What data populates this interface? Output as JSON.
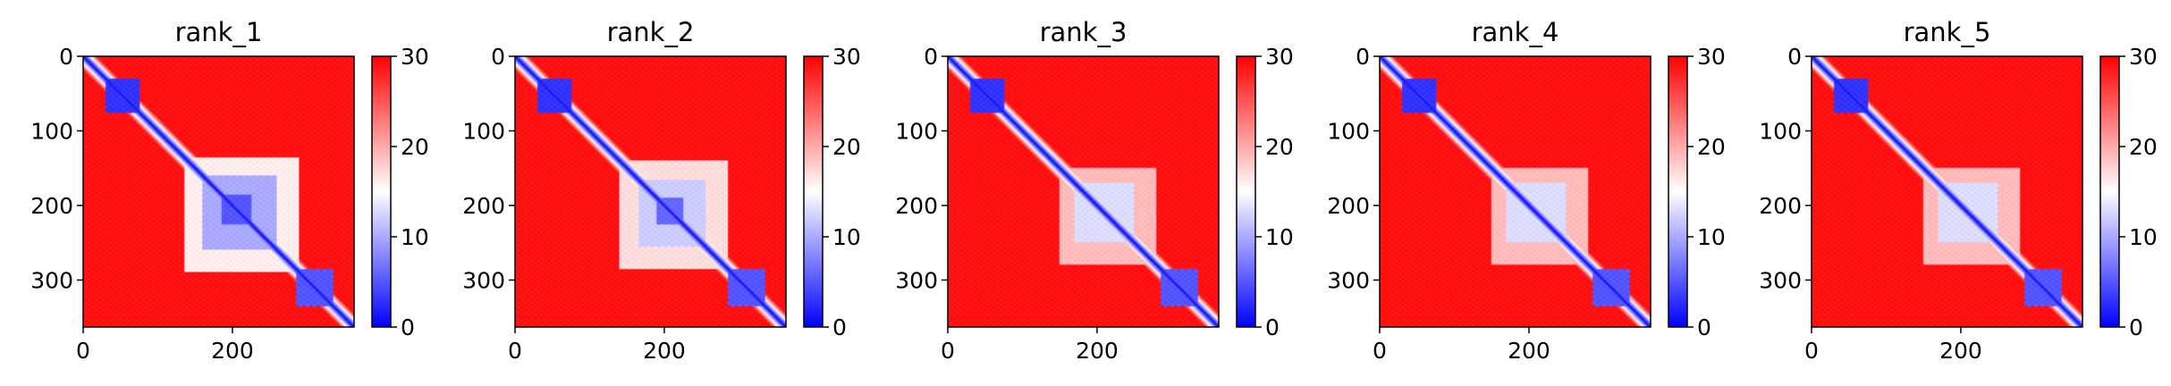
{
  "figure": {
    "colormap": [
      "#0000ff",
      "#ffffff",
      "#ff0000"
    ]
  },
  "chart_data": [
    {
      "type": "heatmap",
      "title": "rank_1",
      "xlabel": "",
      "ylabel": "",
      "xlim": [
        0,
        363
      ],
      "ylim": [
        363,
        0
      ],
      "x_ticks": [
        0,
        200
      ],
      "y_ticks": [
        0,
        100,
        200,
        300
      ],
      "colorbar": {
        "min": 0,
        "max": 30,
        "ticks": [
          0,
          10,
          20,
          30
        ]
      },
      "diagonal_value": 0,
      "background_value": 29,
      "blocks": [
        [
          30,
          75,
          3
        ],
        [
          135,
          290,
          16
        ],
        [
          160,
          260,
          10
        ],
        [
          185,
          225,
          5
        ],
        [
          285,
          335,
          5
        ]
      ]
    },
    {
      "type": "heatmap",
      "title": "rank_2",
      "xlabel": "",
      "ylabel": "",
      "xlim": [
        0,
        363
      ],
      "ylim": [
        363,
        0
      ],
      "x_ticks": [
        0,
        200
      ],
      "y_ticks": [
        0,
        100,
        200,
        300
      ],
      "colorbar": {
        "min": 0,
        "max": 30,
        "ticks": [
          0,
          10,
          20,
          30
        ]
      },
      "diagonal_value": 0,
      "background_value": 29,
      "blocks": [
        [
          30,
          75,
          3
        ],
        [
          140,
          285,
          17
        ],
        [
          165,
          255,
          12
        ],
        [
          190,
          225,
          6
        ],
        [
          285,
          335,
          5
        ]
      ]
    },
    {
      "type": "heatmap",
      "title": "rank_3",
      "xlabel": "",
      "ylabel": "",
      "xlim": [
        0,
        363
      ],
      "ylim": [
        363,
        0
      ],
      "x_ticks": [
        0,
        200
      ],
      "y_ticks": [
        0,
        100,
        200,
        300
      ],
      "colorbar": {
        "min": 0,
        "max": 30,
        "ticks": [
          0,
          10,
          20,
          30
        ]
      },
      "diagonal_value": 0,
      "background_value": 29,
      "blocks": [
        [
          30,
          75,
          3
        ],
        [
          150,
          280,
          19
        ],
        [
          170,
          250,
          13
        ],
        [
          285,
          335,
          5
        ]
      ]
    },
    {
      "type": "heatmap",
      "title": "rank_4",
      "xlabel": "",
      "ylabel": "",
      "xlim": [
        0,
        363
      ],
      "ylim": [
        363,
        0
      ],
      "x_ticks": [
        0,
        200
      ],
      "y_ticks": [
        0,
        100,
        200,
        300
      ],
      "colorbar": {
        "min": 0,
        "max": 30,
        "ticks": [
          0,
          10,
          20,
          30
        ]
      },
      "diagonal_value": 0,
      "background_value": 29,
      "blocks": [
        [
          30,
          75,
          3
        ],
        [
          150,
          280,
          19
        ],
        [
          170,
          250,
          13
        ],
        [
          285,
          335,
          5
        ]
      ]
    },
    {
      "type": "heatmap",
      "title": "rank_5",
      "xlabel": "",
      "ylabel": "",
      "xlim": [
        0,
        363
      ],
      "ylim": [
        363,
        0
      ],
      "x_ticks": [
        0,
        200
      ],
      "y_ticks": [
        0,
        100,
        200,
        300
      ],
      "colorbar": {
        "min": 0,
        "max": 30,
        "ticks": [
          0,
          10,
          20,
          30
        ]
      },
      "diagonal_value": 0,
      "background_value": 29,
      "blocks": [
        [
          30,
          75,
          3
        ],
        [
          150,
          280,
          19
        ],
        [
          170,
          250,
          13
        ],
        [
          285,
          335,
          5
        ]
      ]
    }
  ]
}
